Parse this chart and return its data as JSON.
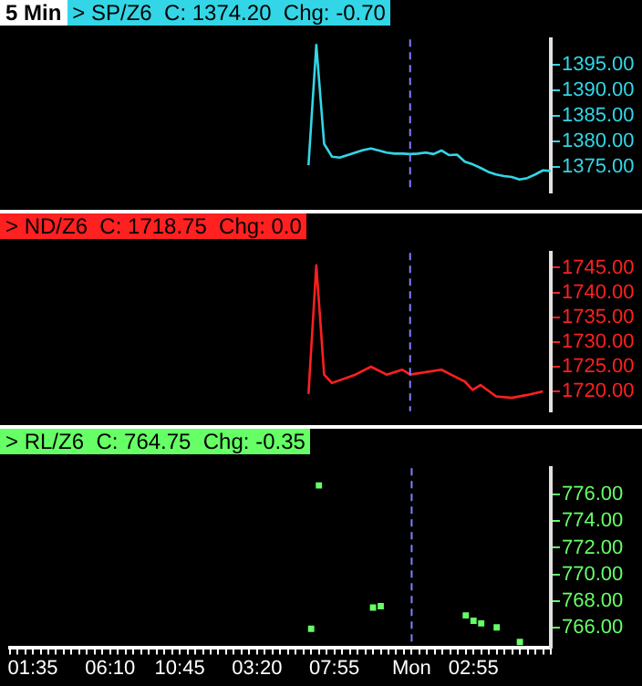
{
  "chart_data": [
    {
      "type": "line",
      "title": "> SP/Z6  C: 1374.20  Chg: -0.70",
      "annotations": [
        "5 Min"
      ],
      "categories": [
        null,
        null,
        null,
        "01:35",
        null,
        null,
        null,
        null,
        null,
        null,
        null,
        null,
        null,
        "06:10",
        null,
        null,
        null,
        null,
        null,
        null,
        null,
        null,
        "10:45",
        null,
        null,
        null,
        null,
        null,
        null,
        null,
        null,
        null,
        "03:20",
        null,
        null,
        null,
        null,
        null,
        null,
        null,
        null,
        null,
        "07:55",
        null,
        null,
        null,
        null,
        null,
        null,
        null,
        null,
        null,
        "Mon",
        null,
        null,
        null,
        null,
        null,
        null,
        null,
        "02:55",
        null,
        null,
        null,
        null,
        null,
        null,
        null,
        null,
        null,
        null
      ],
      "series": [
        {
          "color": "#33d6e6",
          "values": [
            null,
            null,
            null,
            null,
            null,
            null,
            null,
            null,
            null,
            null,
            null,
            null,
            null,
            null,
            null,
            null,
            null,
            null,
            null,
            null,
            null,
            null,
            null,
            null,
            null,
            null,
            null,
            null,
            null,
            null,
            null,
            null,
            null,
            null,
            null,
            null,
            null,
            null,
            null,
            1375.3,
            1398.9,
            1379.5,
            1377.0,
            1376.8,
            1377.3,
            1377.8,
            1378.3,
            1378.6,
            1378.2,
            1377.8,
            1377.6,
            1377.6,
            1377.5,
            1377.6,
            1377.8,
            1377.5,
            1378.2,
            1377.3,
            1377.4,
            1376.0,
            1375.5,
            1374.8,
            1374.0,
            1373.5,
            1373.2,
            1373.0,
            1372.5,
            1372.8,
            1373.5,
            1374.3,
            1374.2
          ]
        }
      ],
      "ylim": [
        1370,
        1400
      ],
      "yticks": [
        {
          "value": 1375,
          "label": "1375.00"
        },
        {
          "value": 1380,
          "label": "1380.00"
        },
        {
          "value": 1385,
          "label": "1385.00"
        },
        {
          "value": 1390,
          "label": "1390.00"
        },
        {
          "value": 1395,
          "label": "1395.00"
        }
      ],
      "ref_lines": [
        {
          "axis": "x",
          "value": "Mon",
          "color": "#8080ff",
          "line_style": "dashed"
        }
      ],
      "tick_labels": "y",
      "grid": false,
      "legend": false,
      "marker": "none",
      "line_style": "solid"
    },
    {
      "type": "line",
      "title": "> ND/Z6  C: 1718.75  Chg: 0.0",
      "categories": [
        null,
        null,
        null,
        "01:35",
        null,
        null,
        null,
        null,
        null,
        null,
        null,
        null,
        null,
        "06:10",
        null,
        null,
        null,
        null,
        null,
        null,
        null,
        null,
        "10:45",
        null,
        null,
        null,
        null,
        null,
        null,
        null,
        null,
        null,
        "03:20",
        null,
        null,
        null,
        null,
        null,
        null,
        null,
        null,
        null,
        "07:55",
        null,
        null,
        null,
        null,
        null,
        null,
        null,
        null,
        null,
        "Mon",
        null,
        null,
        null,
        null,
        null,
        null,
        null,
        "02:55",
        null,
        null,
        null,
        null,
        null,
        null,
        null,
        null,
        null,
        null
      ],
      "series": [
        {
          "color": "#ff2020",
          "values": [
            null,
            null,
            null,
            null,
            null,
            null,
            null,
            null,
            null,
            null,
            null,
            null,
            null,
            null,
            null,
            null,
            null,
            null,
            null,
            null,
            null,
            null,
            null,
            null,
            null,
            null,
            null,
            null,
            null,
            null,
            null,
            null,
            null,
            null,
            null,
            null,
            null,
            null,
            null,
            1719.5,
            1745.5,
            1723.4,
            1721.7,
            null,
            null,
            1723.4,
            null,
            1725.0,
            null,
            1723.4,
            null,
            1724.4,
            1723.4,
            null,
            null,
            null,
            1724.4,
            1723.6,
            null,
            1722.0,
            1720.3,
            1721.3,
            null,
            1719.0,
            null,
            1718.7,
            null,
            1719.3,
            null,
            1720.0,
            null
          ]
        }
      ],
      "ylim": [
        1716,
        1748
      ],
      "yticks": [
        {
          "value": 1720,
          "label": "1720.00"
        },
        {
          "value": 1725,
          "label": "1725.00"
        },
        {
          "value": 1730,
          "label": "1730.00"
        },
        {
          "value": 1735,
          "label": "1735.00"
        },
        {
          "value": 1740,
          "label": "1740.00"
        },
        {
          "value": 1745,
          "label": "1745.00"
        }
      ],
      "ref_lines": [
        {
          "axis": "x",
          "value": "Mon",
          "color": "#8080ff",
          "line_style": "dashed"
        }
      ],
      "tick_labels": "y",
      "grid": false,
      "legend": false,
      "marker": "none",
      "line_style": "solid"
    },
    {
      "type": "scatter",
      "title": "> RL/Z6  C: 764.75  Chg: -0.35",
      "categories": [
        null,
        null,
        null,
        "01:35",
        null,
        null,
        null,
        null,
        null,
        null,
        null,
        null,
        null,
        "06:10",
        null,
        null,
        null,
        null,
        null,
        null,
        null,
        null,
        "10:45",
        null,
        null,
        null,
        null,
        null,
        null,
        null,
        null,
        null,
        "03:20",
        null,
        null,
        null,
        null,
        null,
        null,
        null,
        null,
        null,
        "07:55",
        null,
        null,
        null,
        null,
        null,
        null,
        null,
        null,
        null,
        "Mon",
        null,
        null,
        null,
        null,
        null,
        null,
        null,
        "02:55",
        null,
        null,
        null,
        null,
        null,
        null,
        null,
        null,
        null,
        null
      ],
      "series": [
        {
          "color": "#66ff66",
          "values": [
            null,
            null,
            null,
            null,
            null,
            null,
            null,
            null,
            null,
            null,
            null,
            null,
            null,
            null,
            null,
            null,
            null,
            null,
            null,
            null,
            null,
            null,
            null,
            null,
            null,
            null,
            null,
            null,
            null,
            null,
            null,
            null,
            null,
            null,
            null,
            null,
            null,
            null,
            null,
            765.9,
            776.7,
            null,
            null,
            null,
            null,
            null,
            null,
            767.5,
            767.6,
            null,
            null,
            null,
            null,
            null,
            null,
            null,
            null,
            null,
            null,
            766.9,
            766.5,
            766.3,
            null,
            766.0,
            null,
            null,
            764.9,
            null,
            null,
            null,
            null
          ]
        }
      ],
      "ylim": [
        764.5,
        778
      ],
      "yticks": [
        {
          "value": 766,
          "label": "766.00"
        },
        {
          "value": 768,
          "label": "768.00"
        },
        {
          "value": 770,
          "label": "770.00"
        },
        {
          "value": 772,
          "label": "772.00"
        },
        {
          "value": 774,
          "label": "774.00"
        },
        {
          "value": 776,
          "label": "776.00"
        }
      ],
      "ref_lines": [
        {
          "axis": "x",
          "value": "Mon",
          "color": "#8080ff",
          "line_style": "dashed"
        }
      ],
      "grid": false,
      "legend": false,
      "marker": "square"
    }
  ]
}
